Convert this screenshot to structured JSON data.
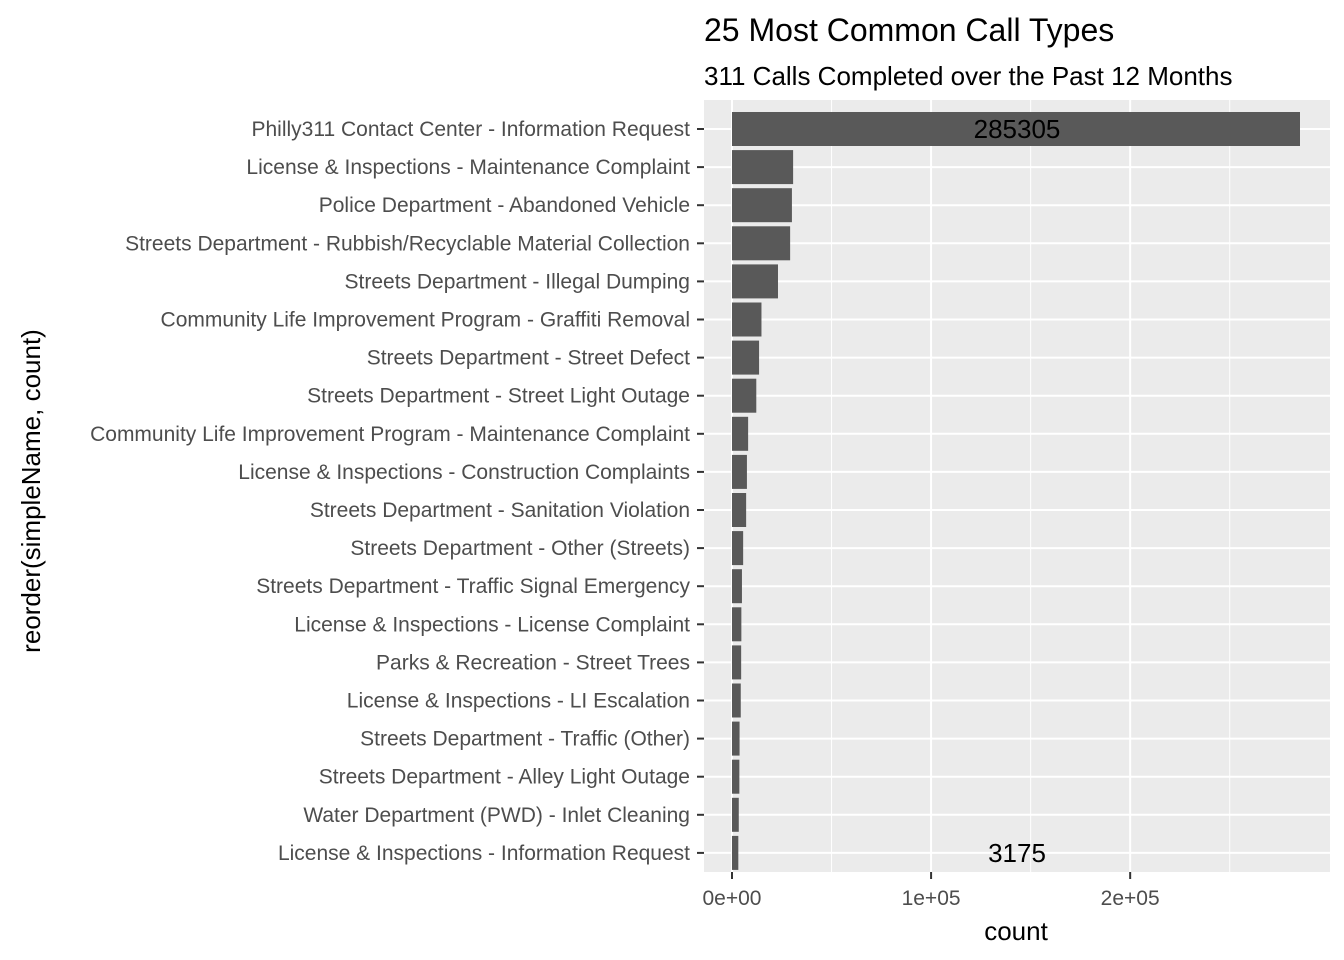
{
  "chart_data": {
    "type": "bar",
    "orientation": "horizontal",
    "title": "25 Most Common Call Types",
    "subtitle": "311 Calls Completed over the Past 12 Months",
    "xlabel": "count",
    "ylabel": "reorder(simpleName, count)",
    "xlim": [
      0,
      285305
    ],
    "x_ticks": [
      {
        "value": 0,
        "label": "0e+00"
      },
      {
        "value": 100000,
        "label": "1e+05"
      },
      {
        "value": 200000,
        "label": "2e+05"
      }
    ],
    "grid": true,
    "categories": [
      "Philly311 Contact Center - Information Request",
      "License & Inspections - Maintenance Complaint",
      "Police Department - Abandoned Vehicle",
      "Streets Department - Rubbish/Recyclable Material Collection",
      "Streets Department - Illegal Dumping",
      "Community Life Improvement Program - Graffiti Removal",
      "Streets Department - Street Defect",
      "Streets Department - Street Light Outage",
      "Community Life Improvement Program - Maintenance Complaint",
      "License & Inspections - Construction Complaints",
      "Streets Department - Sanitation Violation",
      "Streets Department - Other (Streets)",
      "Streets Department - Traffic Signal Emergency",
      "License & Inspections - License Complaint",
      "Parks & Recreation - Street Trees",
      "License & Inspections - LI Escalation",
      "Streets Department - Traffic (Other)",
      "Streets Department - Alley Light Outage",
      "Water Department (PWD) - Inlet Cleaning",
      "License & Inspections - Information Request"
    ],
    "values": [
      285305,
      30700,
      30100,
      29200,
      23100,
      14800,
      13600,
      12200,
      8100,
      7500,
      7100,
      5600,
      5000,
      4700,
      4600,
      4400,
      3800,
      3700,
      3400,
      3175
    ],
    "annotations": [
      {
        "text": "285305"
      },
      {
        "text": "3175"
      }
    ],
    "colors": {
      "bar": "#595959",
      "panel": "#ebebeb",
      "grid": "#ffffff",
      "tick_text": "#4d4d4d"
    }
  }
}
